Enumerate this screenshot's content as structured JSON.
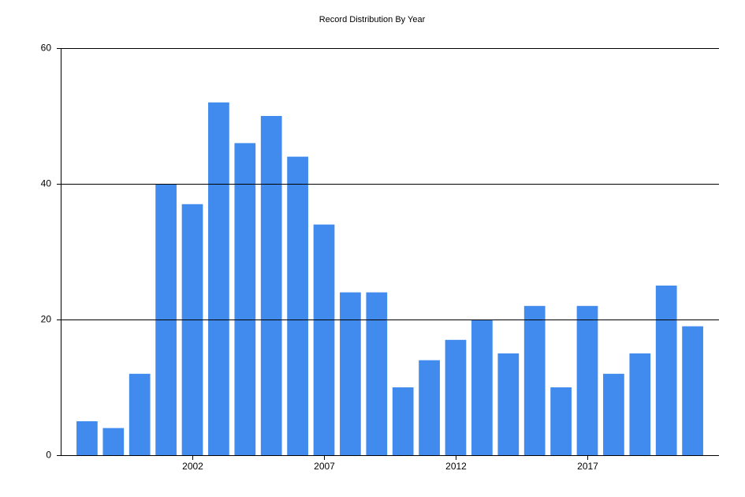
{
  "chart_data": {
    "type": "bar",
    "title": "Record Distribution By Year",
    "x": [
      1998,
      1999,
      2000,
      2001,
      2002,
      2003,
      2004,
      2005,
      2006,
      2007,
      2008,
      2009,
      2010,
      2011,
      2012,
      2013,
      2014,
      2015,
      2016,
      2017,
      2018,
      2019,
      2020,
      2021
    ],
    "values": [
      5,
      4,
      12,
      40,
      37,
      52,
      46,
      50,
      44,
      34,
      24,
      24,
      10,
      14,
      17,
      20,
      15,
      22,
      10,
      22,
      12,
      15,
      25,
      19
    ],
    "color": "#428bee",
    "xlim": [
      1997,
      2022
    ],
    "xticks": [
      2002,
      2007,
      2012,
      2017
    ],
    "ylim": [
      0,
      60
    ],
    "yticks": [
      0,
      20,
      40,
      60
    ],
    "grid": true
  }
}
